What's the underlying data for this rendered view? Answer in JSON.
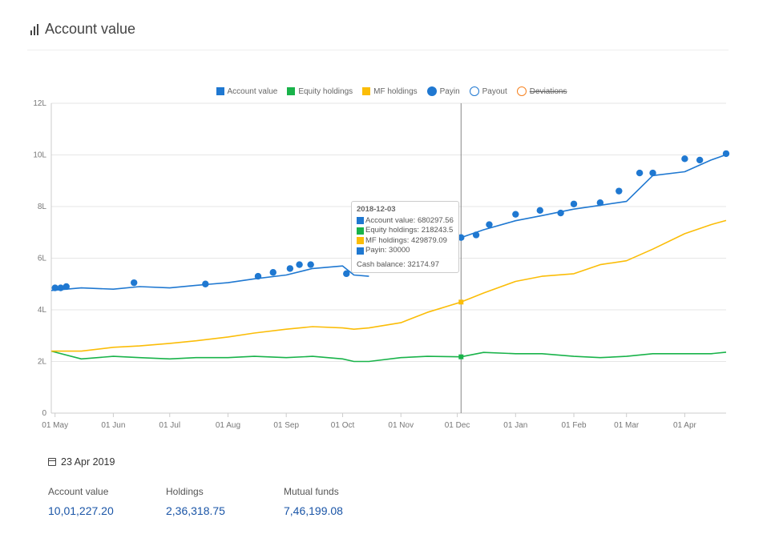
{
  "header": {
    "title": "Account value",
    "icon": "bar-chart-icon"
  },
  "legend": [
    {
      "label": "Account value",
      "color": "#1f78d1",
      "shape": "square",
      "hidden": false
    },
    {
      "label": "Equity holdings",
      "color": "#19b34a",
      "shape": "square",
      "hidden": false
    },
    {
      "label": "MF holdings",
      "color": "#fbbd08",
      "shape": "square",
      "hidden": false
    },
    {
      "label": "Payin",
      "color": "#1f78d1",
      "shape": "filled-circle",
      "hidden": false
    },
    {
      "label": "Payout",
      "color": "#1f78d1",
      "shape": "hollow-circle",
      "hidden": false
    },
    {
      "label": "Deviations",
      "color": "#f68220",
      "shape": "hollow-circle",
      "hidden": true
    }
  ],
  "tooltip": {
    "date": "2018-12-03",
    "rows": [
      {
        "text": "Account value: 680297.56",
        "color": "#1f78d1"
      },
      {
        "text": "Equity holdings: 218243.5",
        "color": "#19b34a"
      },
      {
        "text": "MF holdings: 429879.09",
        "color": "#fbbd08"
      },
      {
        "text": "Payin: 30000",
        "color": "#1f78d1"
      }
    ],
    "cash": "Cash balance: 32174.97"
  },
  "summary": {
    "date": "23 Apr 2019",
    "stats": [
      {
        "label": "Account value",
        "value": "10,01,227.20"
      },
      {
        "label": "Holdings",
        "value": "2,36,318.75"
      },
      {
        "label": "Mutual funds",
        "value": "7,46,199.08"
      }
    ]
  },
  "chart_data": {
    "type": "line",
    "y_ticks": [
      "0",
      "2L",
      "4L",
      "6L",
      "8L",
      "10L",
      "12L"
    ],
    "x_ticks": [
      "01 May",
      "01 Jun",
      "01 Jul",
      "01 Aug",
      "01 Sep",
      "01 Oct",
      "01 Nov",
      "01 Dec",
      "01 Jan",
      "01 Feb",
      "01 Mar",
      "01 Apr"
    ],
    "ylim": [
      0,
      12
    ],
    "grid": true,
    "legend_position": "top",
    "crosshair_x": "2018-12-03",
    "x": [
      "2018-04-29",
      "2018-05-15",
      "2018-06-01",
      "2018-06-15",
      "2018-07-01",
      "2018-07-15",
      "2018-08-01",
      "2018-08-15",
      "2018-09-01",
      "2018-09-15",
      "2018-10-01",
      "2018-10-07",
      "2018-10-15",
      "2018-11-01",
      "2018-11-15",
      "2018-12-03",
      "2018-12-15",
      "2019-01-01",
      "2019-01-15",
      "2019-02-01",
      "2019-02-15",
      "2019-03-01",
      "2019-03-15",
      "2019-04-01",
      "2019-04-15",
      "2019-04-23"
    ],
    "series": [
      {
        "name": "Account value",
        "color": "#1f78d1",
        "values": [
          4.75,
          4.85,
          4.8,
          4.9,
          4.85,
          4.95,
          5.05,
          5.2,
          5.35,
          5.6,
          5.7,
          5.35,
          5.3,
          null,
          null,
          6.8,
          7.1,
          7.45,
          7.65,
          7.9,
          8.05,
          8.2,
          9.2,
          9.35,
          9.8,
          10.01
        ]
      },
      {
        "name": "Equity holdings",
        "color": "#19b34a",
        "values": [
          2.4,
          2.1,
          2.2,
          2.15,
          2.1,
          2.15,
          2.15,
          2.2,
          2.15,
          2.2,
          2.1,
          2.0,
          2.0,
          2.15,
          2.2,
          2.18,
          2.35,
          2.3,
          2.3,
          2.2,
          2.15,
          2.2,
          2.3,
          2.3,
          2.3,
          2.36
        ]
      },
      {
        "name": "MF holdings",
        "color": "#fbbd08",
        "values": [
          2.4,
          2.4,
          2.55,
          2.6,
          2.7,
          2.8,
          2.95,
          3.1,
          3.25,
          3.35,
          3.3,
          3.25,
          3.3,
          3.5,
          3.9,
          4.3,
          4.65,
          5.1,
          5.3,
          5.4,
          5.75,
          5.9,
          6.35,
          6.95,
          7.3,
          7.46
        ]
      }
    ],
    "payin_dates": [
      "2018-05-01",
      "2018-05-04",
      "2018-05-07",
      "2018-06-12",
      "2018-07-20",
      "2018-08-17",
      "2018-08-25",
      "2018-09-03",
      "2018-09-08",
      "2018-09-14",
      "2018-10-03",
      "2018-12-03",
      "2018-12-11",
      "2018-12-18",
      "2019-01-01",
      "2019-01-14",
      "2019-01-25",
      "2019-02-01",
      "2019-02-15",
      "2019-02-25",
      "2019-03-08",
      "2019-03-15",
      "2019-04-01",
      "2019-04-09",
      "2019-04-23"
    ],
    "payin_values": [
      4.85,
      4.85,
      4.9,
      5.05,
      5.0,
      5.3,
      5.45,
      5.6,
      5.75,
      5.75,
      5.4,
      6.8,
      6.9,
      7.3,
      7.7,
      7.85,
      7.75,
      8.1,
      8.15,
      8.6,
      9.3,
      9.3,
      9.85,
      9.8,
      10.05
    ]
  }
}
